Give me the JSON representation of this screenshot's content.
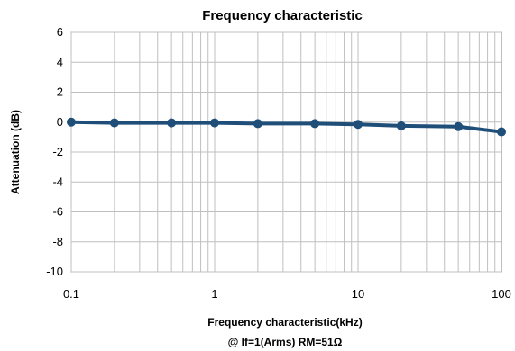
{
  "chart_data": {
    "type": "line",
    "title": "Frequency characteristic",
    "xlabel": "Frequency characteristic(kHz)",
    "ylabel": "Attenuation (dB)",
    "note": "@ If=1(Arms)    RM=51Ω",
    "x_scale": "log",
    "xlim": [
      0.1,
      100
    ],
    "ylim": [
      -10,
      6
    ],
    "x_ticks": [
      0.1,
      1,
      10,
      100
    ],
    "x_tick_labels": [
      "0.1",
      "1",
      "10",
      "100"
    ],
    "y_ticks": [
      6,
      4,
      2,
      0,
      -2,
      -4,
      -6,
      -8,
      -10
    ],
    "y_tick_labels": [
      "6",
      "4",
      "2",
      "0",
      "-2",
      "-4",
      "-6",
      "-8",
      "-10"
    ],
    "grid": true,
    "series": [
      {
        "x": [
          0.1,
          0.2,
          0.5,
          1,
          2,
          5,
          10,
          20,
          50,
          100
        ],
        "y": [
          0.0,
          -0.05,
          -0.05,
          -0.05,
          -0.1,
          -0.1,
          -0.15,
          -0.25,
          -0.3,
          -0.65
        ],
        "color": "#1f4e79"
      }
    ]
  }
}
